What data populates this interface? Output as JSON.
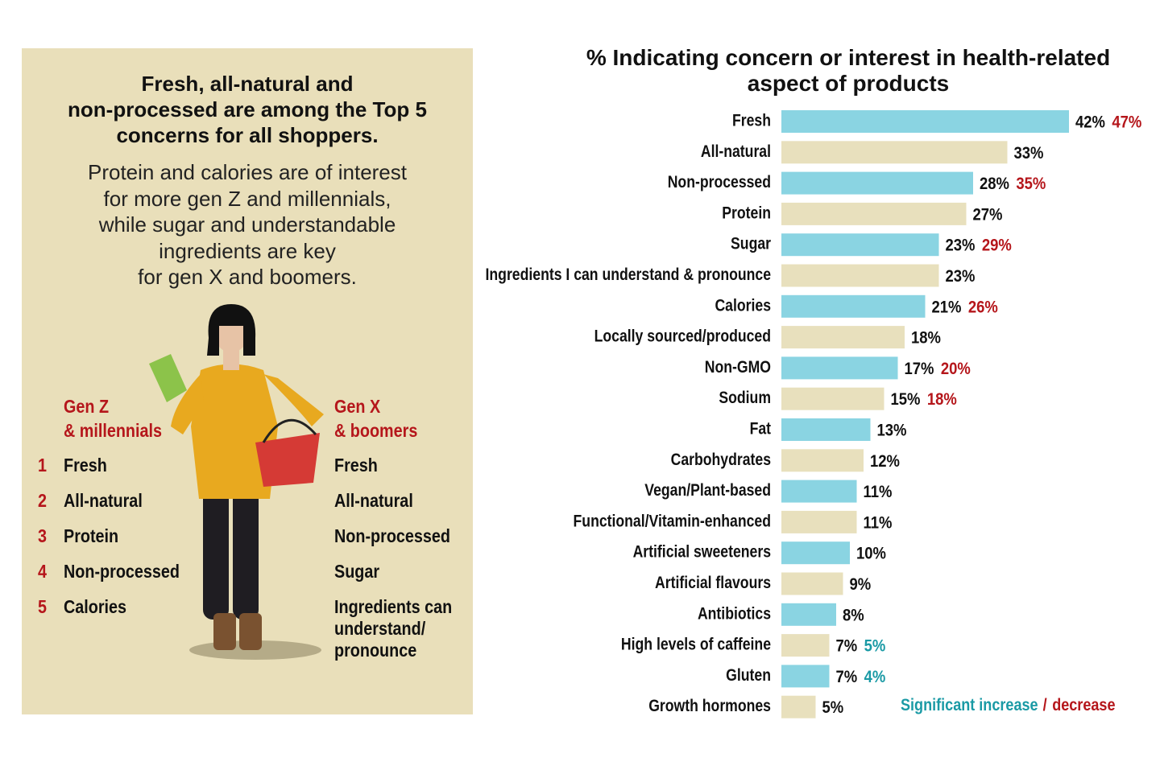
{
  "panel": {
    "title_lines": [
      "Fresh, all-natural and",
      "non-processed are among the Top 5",
      "concerns for all shoppers."
    ],
    "subtitle_lines": [
      "Protein and calories are of interest",
      "for more gen Z and millennials,",
      "while sugar and understandable",
      "ingredients are key",
      "for gen X and boomers."
    ],
    "genz": {
      "heading_lines": [
        "Gen Z",
        "& millennials"
      ],
      "items": [
        {
          "rank": 1,
          "label": "Fresh"
        },
        {
          "rank": 2,
          "label": "All-natural"
        },
        {
          "rank": 3,
          "label": "Protein"
        },
        {
          "rank": 4,
          "label": "Non-processed"
        },
        {
          "rank": 5,
          "label": "Calories"
        }
      ]
    },
    "genx": {
      "heading_lines": [
        "Gen X",
        "& boomers"
      ],
      "items": [
        "Fresh",
        "All-natural",
        "Non-processed",
        "Sugar",
        "Ingredients can understand/ pronounce"
      ]
    }
  },
  "chart_data": {
    "type": "hbar",
    "title": "% Indicating concern or interest in health-related aspect of products",
    "categories": [
      "Fresh",
      "All-natural",
      "Non-processed",
      "Protein",
      "Sugar",
      "Ingredients I can understand & pronounce",
      "Calories",
      "Locally sourced/produced",
      "Non-GMO",
      "Sodium",
      "Fat",
      "Carbohydrates",
      "Vegan/Plant-based",
      "Functional/Vitamin-enhanced",
      "Artificial sweeteners",
      "Artificial flavours",
      "Antibiotics",
      "High levels of caffeine",
      "Gluten",
      "Growth hormones"
    ],
    "values": [
      42,
      33,
      28,
      27,
      23,
      23,
      21,
      18,
      17,
      15,
      13,
      12,
      11,
      11,
      10,
      9,
      8,
      7,
      7,
      5
    ],
    "value_labels": [
      "42%",
      "33%",
      "28%",
      "27%",
      "23%",
      "23%",
      "21%",
      "18%",
      "17%",
      "15%",
      "13%",
      "12%",
      "11%",
      "11%",
      "10%",
      "9%",
      "8%",
      "7%",
      "7%",
      "5%"
    ],
    "compare_values": [
      47,
      null,
      35,
      null,
      29,
      null,
      26,
      null,
      20,
      18,
      null,
      null,
      null,
      null,
      null,
      null,
      null,
      5,
      4,
      null
    ],
    "compare_value_labels": [
      "47%",
      null,
      "35%",
      null,
      "29%",
      null,
      "26%",
      null,
      "20%",
      "18%",
      null,
      null,
      null,
      null,
      null,
      null,
      null,
      "5%",
      "4%",
      null
    ],
    "compare_colors": [
      "#b5161b",
      null,
      "#b5161b",
      null,
      "#b5161b",
      null,
      "#b5161b",
      null,
      "#b5161b",
      "#b5161b",
      null,
      null,
      null,
      null,
      null,
      null,
      null,
      "#1a9aa5",
      "#1a9aa5",
      null
    ],
    "bar_colors": [
      "#8ad4e2",
      "#e8e0bd"
    ],
    "legend": {
      "increase": "Significant increase",
      "separator": "/",
      "decrease": "decrease",
      "increase_color": "#1a9aa5",
      "decrease_color": "#b5161b"
    }
  }
}
